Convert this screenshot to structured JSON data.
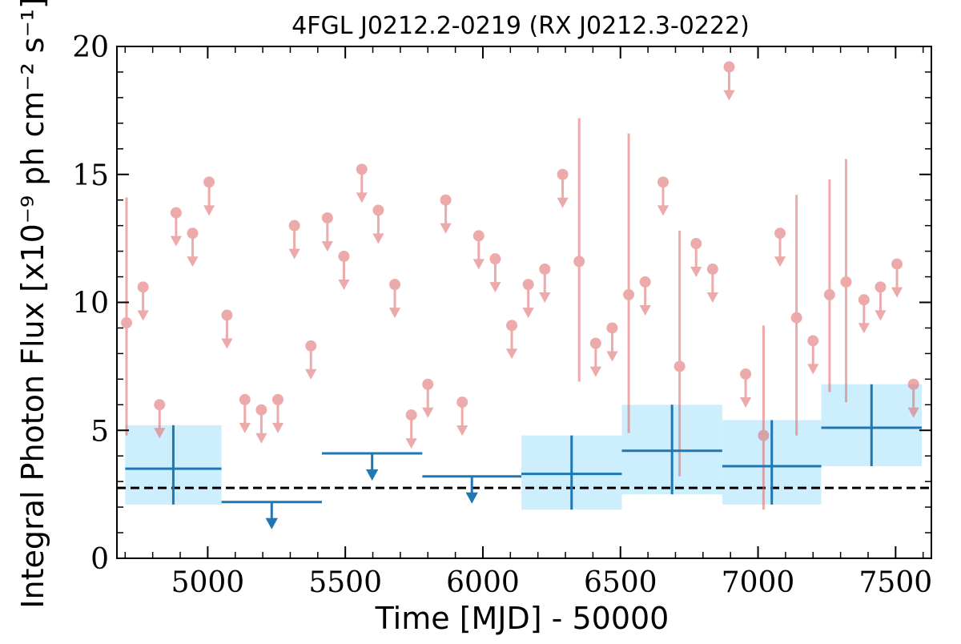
{
  "chart_data": {
    "type": "scatter",
    "title": "4FGL J0212.2-0219 (RX J0212.3-0222)",
    "xlabel": "Time [MJD] - 50000",
    "ylabel": "Integral Photon Flux [x10⁻⁹ ph cm⁻² s⁻¹]",
    "xlim": [
      4670,
      7630
    ],
    "ylim": [
      0,
      20
    ],
    "x_ticks": [
      5000,
      5500,
      6000,
      6500,
      7000,
      7500
    ],
    "y_ticks": [
      0,
      5,
      10,
      15,
      20
    ],
    "grid": false,
    "reference_line": {
      "y": 2.75,
      "style": "dashed",
      "color": "#000000"
    },
    "colors": {
      "fine_bins": "#e06666",
      "coarse_bins": "#1f77b4",
      "coarse_band": "#cdeefc",
      "reference_line": "#000000"
    },
    "series": [
      {
        "points": [
          {
            "x": 4705,
            "y": 9.2,
            "ylo": 4.8,
            "yhi": 14.1
          },
          {
            "x": 4765,
            "y": 10.6,
            "upper_limit": true
          },
          {
            "x": 4825,
            "y": 6.0,
            "upper_limit": true
          },
          {
            "x": 4885,
            "y": 13.5,
            "upper_limit": true
          },
          {
            "x": 4945,
            "y": 12.7,
            "upper_limit": true
          },
          {
            "x": 5005,
            "y": 14.7,
            "upper_limit": true
          },
          {
            "x": 5070,
            "y": 9.5,
            "upper_limit": true
          },
          {
            "x": 5135,
            "y": 6.2,
            "upper_limit": true
          },
          {
            "x": 5195,
            "y": 5.8,
            "upper_limit": true
          },
          {
            "x": 5255,
            "y": 6.2,
            "upper_limit": true
          },
          {
            "x": 5315,
            "y": 13.0,
            "upper_limit": true
          },
          {
            "x": 5375,
            "y": 8.3,
            "upper_limit": true
          },
          {
            "x": 5435,
            "y": 13.3,
            "upper_limit": true
          },
          {
            "x": 5495,
            "y": 11.8,
            "upper_limit": true
          },
          {
            "x": 5560,
            "y": 15.2,
            "upper_limit": true
          },
          {
            "x": 5620,
            "y": 13.6,
            "upper_limit": true
          },
          {
            "x": 5680,
            "y": 10.7,
            "upper_limit": true
          },
          {
            "x": 5740,
            "y": 5.6,
            "upper_limit": true
          },
          {
            "x": 5800,
            "y": 6.8,
            "upper_limit": true
          },
          {
            "x": 5865,
            "y": 14.0,
            "upper_limit": true
          },
          {
            "x": 5925,
            "y": 6.1,
            "upper_limit": true
          },
          {
            "x": 5985,
            "y": 12.6,
            "upper_limit": true
          },
          {
            "x": 6045,
            "y": 11.7,
            "upper_limit": true
          },
          {
            "x": 6105,
            "y": 9.1,
            "upper_limit": true
          },
          {
            "x": 6165,
            "y": 10.7,
            "upper_limit": true
          },
          {
            "x": 6225,
            "y": 11.3,
            "upper_limit": true
          },
          {
            "x": 6290,
            "y": 15.0,
            "upper_limit": true
          },
          {
            "x": 6350,
            "y": 11.6,
            "ylo": 6.9,
            "yhi": 17.2
          },
          {
            "x": 6410,
            "y": 8.4,
            "upper_limit": true
          },
          {
            "x": 6470,
            "y": 9.0,
            "upper_limit": true
          },
          {
            "x": 6530,
            "y": 10.3,
            "ylo": 4.9,
            "yhi": 16.6
          },
          {
            "x": 6590,
            "y": 10.8,
            "upper_limit": true
          },
          {
            "x": 6655,
            "y": 14.7,
            "upper_limit": true
          },
          {
            "x": 6715,
            "y": 7.5,
            "ylo": 3.2,
            "yhi": 12.8
          },
          {
            "x": 6775,
            "y": 12.3,
            "upper_limit": true
          },
          {
            "x": 6835,
            "y": 11.3,
            "upper_limit": true
          },
          {
            "x": 6895,
            "y": 19.2,
            "upper_limit": true
          },
          {
            "x": 6955,
            "y": 7.2,
            "upper_limit": true
          },
          {
            "x": 7020,
            "y": 4.8,
            "ylo": 1.9,
            "yhi": 9.1
          },
          {
            "x": 7080,
            "y": 12.7,
            "upper_limit": true
          },
          {
            "x": 7140,
            "y": 9.4,
            "ylo": 4.8,
            "yhi": 14.2
          },
          {
            "x": 7200,
            "y": 8.5,
            "upper_limit": true
          },
          {
            "x": 7260,
            "y": 10.3,
            "ylo": 6.5,
            "yhi": 14.8
          },
          {
            "x": 7320,
            "y": 10.8,
            "ylo": 6.1,
            "yhi": 15.6
          },
          {
            "x": 7385,
            "y": 10.1,
            "upper_limit": true
          },
          {
            "x": 7445,
            "y": 10.6,
            "upper_limit": true
          },
          {
            "x": 7505,
            "y": 11.5,
            "upper_limit": true
          },
          {
            "x": 7565,
            "y": 6.8,
            "upper_limit": true
          }
        ]
      },
      {
        "bins": [
          {
            "x0": 4700,
            "x1": 5050,
            "y": 3.5,
            "ylo": 2.1,
            "yhi": 5.2,
            "band_lo": 2.1,
            "band_hi": 5.2
          },
          {
            "x0": 5050,
            "x1": 5415,
            "y": 2.2,
            "upper_limit": true
          },
          {
            "x0": 5415,
            "x1": 5780,
            "y": 4.1,
            "upper_limit": true
          },
          {
            "x0": 5780,
            "x1": 6140,
            "y": 3.2,
            "upper_limit": true
          },
          {
            "x0": 6140,
            "x1": 6505,
            "y": 3.3,
            "ylo": 1.9,
            "yhi": 4.8,
            "band_lo": 1.9,
            "band_hi": 4.8
          },
          {
            "x0": 6505,
            "x1": 6870,
            "y": 4.2,
            "ylo": 2.5,
            "yhi": 6.0,
            "band_lo": 2.5,
            "band_hi": 6.0
          },
          {
            "x0": 6870,
            "x1": 7230,
            "y": 3.6,
            "ylo": 2.1,
            "yhi": 5.4,
            "band_lo": 2.1,
            "band_hi": 5.4
          },
          {
            "x0": 7230,
            "x1": 7595,
            "y": 5.1,
            "ylo": 3.6,
            "yhi": 6.8,
            "band_lo": 3.6,
            "band_hi": 6.8
          }
        ]
      }
    ]
  }
}
